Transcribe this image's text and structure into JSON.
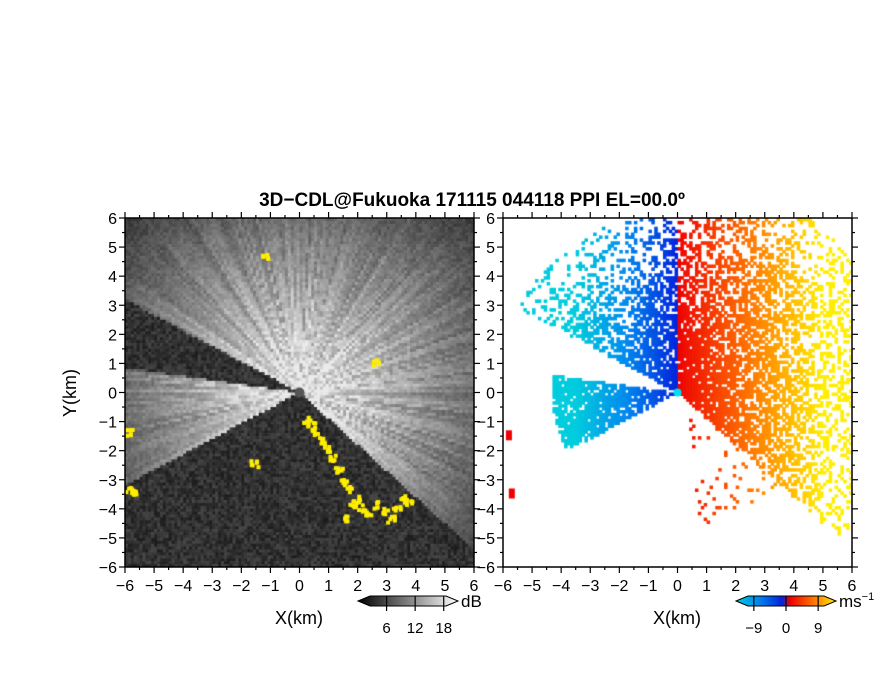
{
  "chart_data": {
    "type": "heatmap",
    "title": "3D−CDL@Fukuoka 171115 044118 PPI EL=00.0º",
    "panels": [
      {
        "name": "reflectivity",
        "xlabel": "X(km)",
        "ylabel": "Y(km)",
        "xlim": [
          -6,
          6
        ],
        "ylim": [
          -6,
          6
        ],
        "xticks": [
          "−6",
          "−5",
          "−4",
          "−3",
          "−2",
          "−1",
          "0",
          "1",
          "2",
          "3",
          "4",
          "5",
          "6"
        ],
        "yticks": [
          "−6",
          "−5",
          "−4",
          "−3",
          "−2",
          "−1",
          "0",
          "1",
          "2",
          "3",
          "4",
          "5",
          "6"
        ],
        "colorbar": {
          "unit": "dB",
          "ticks": [
            6,
            12,
            18
          ],
          "tick_labels": [
            "6",
            "12",
            "18"
          ],
          "range": [
            0,
            21
          ],
          "colors": [
            "#000000",
            "#ffffff"
          ]
        },
        "clutter_color": "#ffee00",
        "background_color": "#222222"
      },
      {
        "name": "doppler-velocity",
        "xlabel": "X(km)",
        "xlim": [
          -6,
          6
        ],
        "ylim": [
          -6,
          6
        ],
        "xticks": [
          "−6",
          "−5",
          "−4",
          "−3",
          "−2",
          "−1",
          "0",
          "1",
          "2",
          "3",
          "4",
          "5",
          "6"
        ],
        "yticks": [
          "−6",
          "−5",
          "−4",
          "−3",
          "−2",
          "−1",
          "0",
          "1",
          "2",
          "3",
          "4",
          "5",
          "6"
        ],
        "colorbar": {
          "unit": "ms",
          "unit_exp": "−1",
          "ticks": [
            -9,
            0,
            9
          ],
          "tick_labels": [
            "−9",
            "0",
            "9"
          ],
          "range": [
            -14,
            14
          ],
          "colors": [
            "#00ccdd",
            "#0088ee",
            "#0022dd",
            "#ee0000",
            "#ff7700",
            "#ffee00"
          ]
        },
        "background_color": "#ffffff"
      }
    ]
  }
}
